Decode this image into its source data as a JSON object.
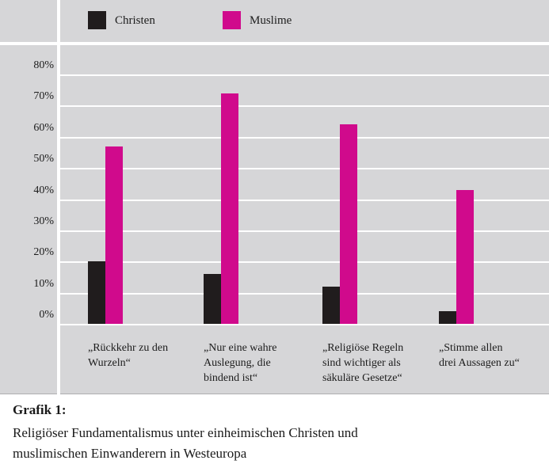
{
  "legend": {
    "items": [
      {
        "label": "Christen",
        "color": "#201c1d"
      },
      {
        "label": "Muslime",
        "color": "#d00a8c"
      }
    ]
  },
  "y_axis": {
    "ticks": [
      0,
      10,
      20,
      30,
      40,
      50,
      60,
      70,
      80
    ],
    "tick_labels": [
      "0%",
      "10%",
      "20%",
      "30%",
      "40%",
      "50%",
      "60%",
      "70%",
      "80%"
    ]
  },
  "chart_data": {
    "type": "bar",
    "categories": [
      "„Rückkehr zu den Wurzeln“",
      "„Nur eine wahre Auslegung, die bindend ist“",
      "„Religiöse Regeln sind wichtiger als säkuläre Gesetze“",
      "„Stimme allen drei Aussagen zu“"
    ],
    "series": [
      {
        "name": "Christen",
        "color": "#201c1d",
        "values": [
          20,
          16,
          12,
          4
        ]
      },
      {
        "name": "Muslime",
        "color": "#d00a8c",
        "values": [
          57,
          74,
          64,
          43
        ]
      }
    ],
    "ylabel": "",
    "xlabel": "",
    "ylim": [
      0,
      90
    ],
    "grid": true,
    "gridline_color": "#ffffff",
    "background_color": "#d6d6d8",
    "legend_position": "top"
  },
  "caption": {
    "label": "Grafik 1:",
    "lines": [
      "Religiöser Fundamentalismus unter einheimischen Christen und",
      "muslimischen Einwanderern in Westeuropa"
    ]
  }
}
